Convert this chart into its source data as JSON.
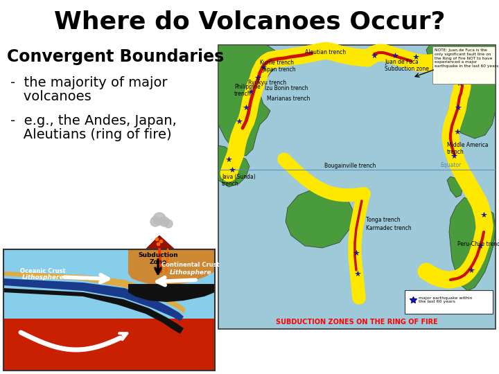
{
  "title": "Where do Volcanoes Occur?",
  "title_fontsize": 26,
  "title_fontweight": "bold",
  "title_color": "#000000",
  "background_color": "#ffffff",
  "section_header": "Convergent Boundaries",
  "section_header_fontsize": 17,
  "section_header_fontweight": "bold",
  "bullet1_line1": "-  the majority of major",
  "bullet1_line2": "   volcanoes",
  "bullet2_line1": "-  e.g., the Andes, Japan,",
  "bullet2_line2": "   Aleutians (ring of fire)",
  "bullet_fontsize": 14,
  "map_label": "SUBDUCTION ZONES ON THE RING OF FIRE",
  "map_label_color": "#FF0000",
  "map_label_fontsize": 7
}
